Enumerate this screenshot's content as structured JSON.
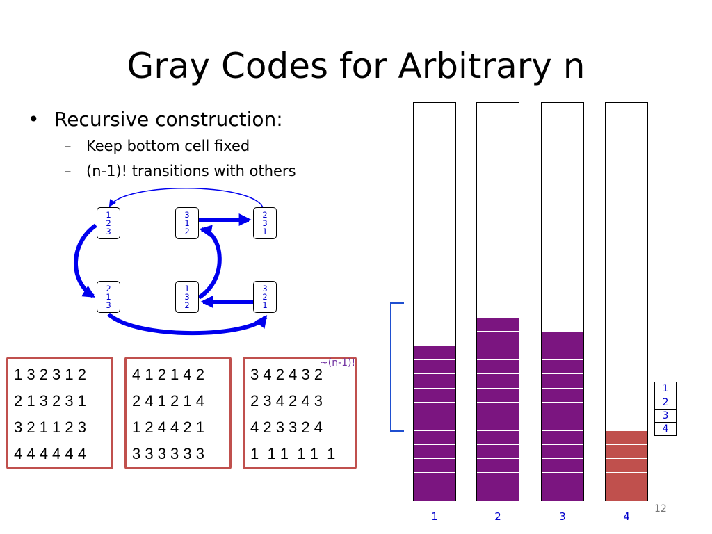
{
  "slide": {
    "title": "Gray Codes for Arbitrary n",
    "bullet": "Recursive construction:",
    "subbullets": [
      "Keep bottom cell fixed",
      "(n-1)! transitions with others"
    ],
    "page_number": "12"
  },
  "diagram": {
    "perms": [
      {
        "id": "123",
        "digits": [
          "1",
          "2",
          "3"
        ]
      },
      {
        "id": "312",
        "digits": [
          "3",
          "1",
          "2"
        ]
      },
      {
        "id": "231",
        "digits": [
          "2",
          "3",
          "1"
        ]
      },
      {
        "id": "213",
        "digits": [
          "2",
          "1",
          "3"
        ]
      },
      {
        "id": "132",
        "digits": [
          "1",
          "3",
          "2"
        ]
      },
      {
        "id": "321",
        "digits": [
          "3",
          "2",
          "1"
        ]
      }
    ]
  },
  "sequences": [
    {
      "rows": [
        "1 3 2 3 1 2",
        "2 1 3 2 3 1",
        "3 2 1 1 2 3",
        "4 4 4 4 4 4"
      ]
    },
    {
      "rows": [
        "4 1 2 1 4 2",
        "2 4 1 2 1 4",
        "1 2 4 4 2 1",
        "3 3 3 3 3 3"
      ]
    },
    {
      "rows": [
        "3 4 2 4 3 2",
        "2 3 4 2 4 3",
        "4 2 3 3 2 4",
        "1  1 1  1 1  1"
      ]
    }
  ],
  "annotation": "~(n-1)!",
  "columns": [
    {
      "label": "1",
      "filled_cells": 11,
      "color": "#7b1580"
    },
    {
      "label": "2",
      "filled_cells": 13,
      "color": "#7b1580"
    },
    {
      "label": "3",
      "filled_cells": 12,
      "color": "#7b1580"
    },
    {
      "label": "4",
      "filled_cells": 5,
      "color": "#c0504d"
    }
  ],
  "legend": [
    "1",
    "2",
    "3",
    "4"
  ],
  "colors": {
    "arrow": "#0000ee",
    "digit": "#0000cc",
    "box_border": "#c0504d",
    "bracket": "#1f4fd0"
  }
}
